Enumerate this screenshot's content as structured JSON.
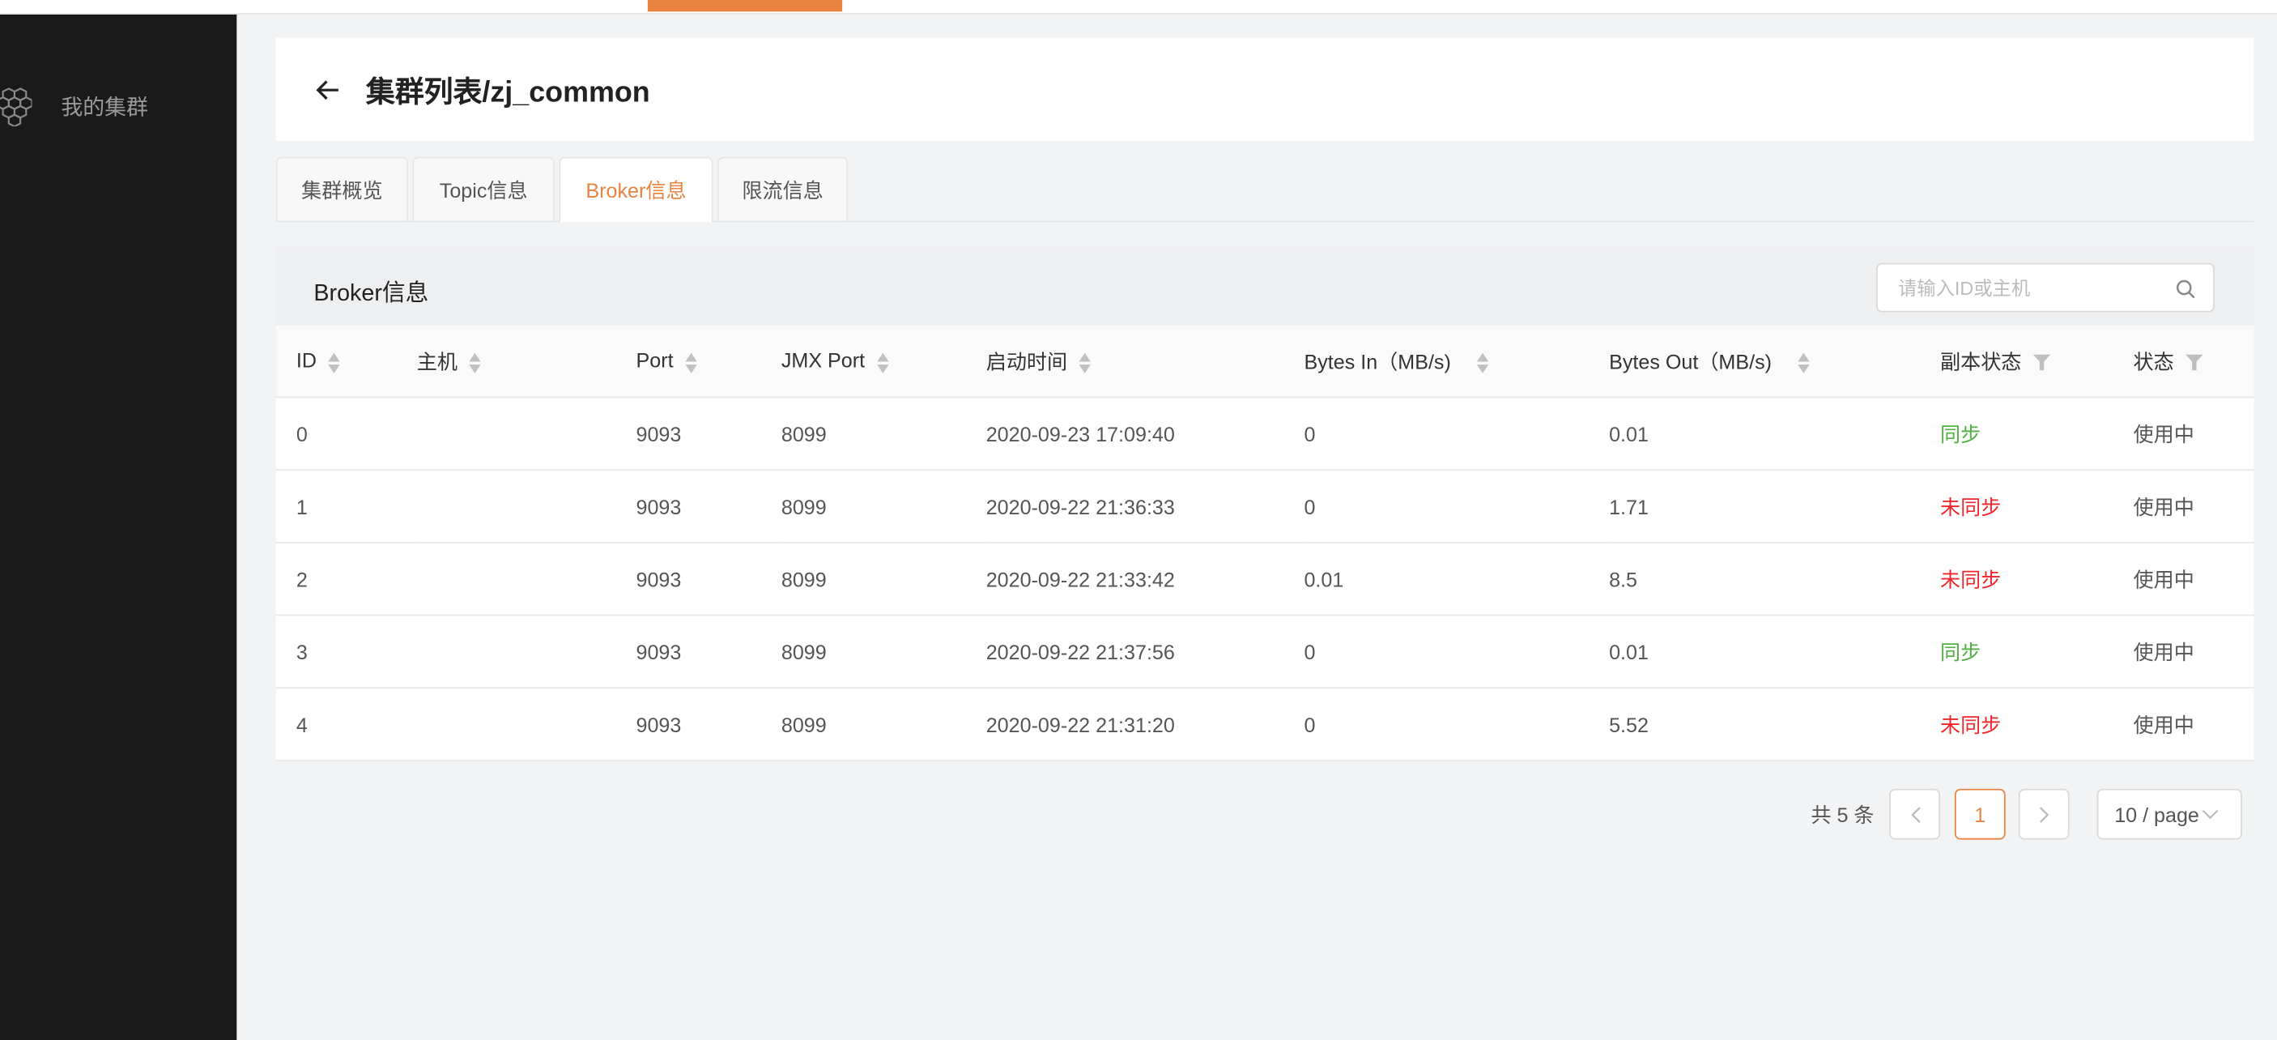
{
  "colors": {
    "accent": "#e8843f",
    "sidebar": "#1a1a1a",
    "sync_ok": "#52b043",
    "sync_bad": "#f0262b"
  },
  "sidebar": {
    "items": [
      {
        "label": "我的集群",
        "icon": "hexagon-cluster-icon"
      }
    ]
  },
  "header": {
    "title": "集群列表/zj_common",
    "back_icon": "arrow-left-icon"
  },
  "tabs": [
    {
      "label": "集群概览"
    },
    {
      "label": "Topic信息"
    },
    {
      "label": "Broker信息",
      "active": true
    },
    {
      "label": "限流信息"
    }
  ],
  "panel": {
    "title": "Broker信息",
    "search": {
      "placeholder": "请输入ID或主机",
      "value": ""
    }
  },
  "table": {
    "columns": [
      "ID",
      "主机",
      "Port",
      "JMX Port",
      "启动时间",
      "Bytes In（MB/s)",
      "Bytes Out（MB/s)",
      "副本状态",
      "状态"
    ],
    "rows": [
      {
        "id": "0",
        "host": "",
        "port": "9093",
        "jmx": "8099",
        "start": "2020-09-23 17:09:40",
        "in": "0",
        "out": "0.01",
        "replica": "同步",
        "replica_ok": true,
        "status": "使用中"
      },
      {
        "id": "1",
        "host": "",
        "port": "9093",
        "jmx": "8099",
        "start": "2020-09-22 21:36:33",
        "in": "0",
        "out": "1.71",
        "replica": "未同步",
        "replica_ok": false,
        "status": "使用中"
      },
      {
        "id": "2",
        "host": "",
        "port": "9093",
        "jmx": "8099",
        "start": "2020-09-22 21:33:42",
        "in": "0.01",
        "out": "8.5",
        "replica": "未同步",
        "replica_ok": false,
        "status": "使用中"
      },
      {
        "id": "3",
        "host": "",
        "port": "9093",
        "jmx": "8099",
        "start": "2020-09-22 21:37:56",
        "in": "0",
        "out": "0.01",
        "replica": "同步",
        "replica_ok": true,
        "status": "使用中"
      },
      {
        "id": "4",
        "host": "",
        "port": "9093",
        "jmx": "8099",
        "start": "2020-09-22 21:31:20",
        "in": "0",
        "out": "5.52",
        "replica": "未同步",
        "replica_ok": false,
        "status": "使用中"
      }
    ]
  },
  "pagination": {
    "total": "共 5 条",
    "current": "1",
    "page_size": "10 / page"
  }
}
